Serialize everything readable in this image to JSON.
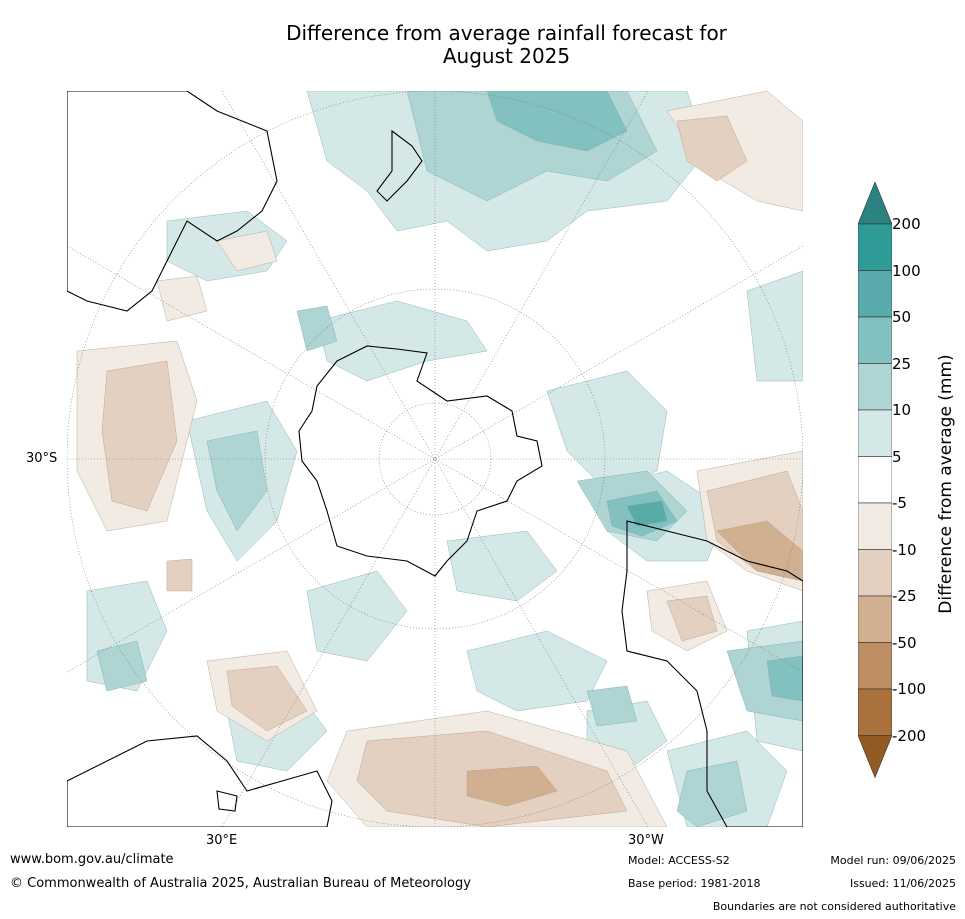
{
  "title_line1": "Difference from average rainfall forecast for",
  "title_line2": "August 2025",
  "map": {
    "projection": "South polar stereographic",
    "lat_label": "30°S",
    "lon_labels": {
      "east": "30°E",
      "west": "30°W"
    }
  },
  "colorbar": {
    "label": "Difference from average (mm)",
    "ticks": [
      "200",
      "100",
      "50",
      "25",
      "10",
      "5",
      "-5",
      "-10",
      "-25",
      "-50",
      "-100",
      "-200"
    ],
    "colors": [
      "#2b827e",
      "#2f9b97",
      "#59ababa8",
      "#82c1bf",
      "#aed5d4",
      "#d4e8e7",
      "#ffffff",
      "#f1ebe4",
      "#e4d0c0",
      "#d1b092",
      "#bd8d64",
      "#a9723c",
      "#935b23"
    ],
    "extend": "both"
  },
  "footer": {
    "url": "www.bom.gov.au/climate",
    "copyright": "© Commonwealth of Australia 2025, Australian Bureau of Meteorology",
    "model": "Model: ACCESS-S2",
    "base_period": "Base period: 1981-2018",
    "model_run": "Model run: 09/06/2025",
    "issued": "Issued: 11/06/2025",
    "disclaimer": "Boundaries are not considered authoritative"
  }
}
